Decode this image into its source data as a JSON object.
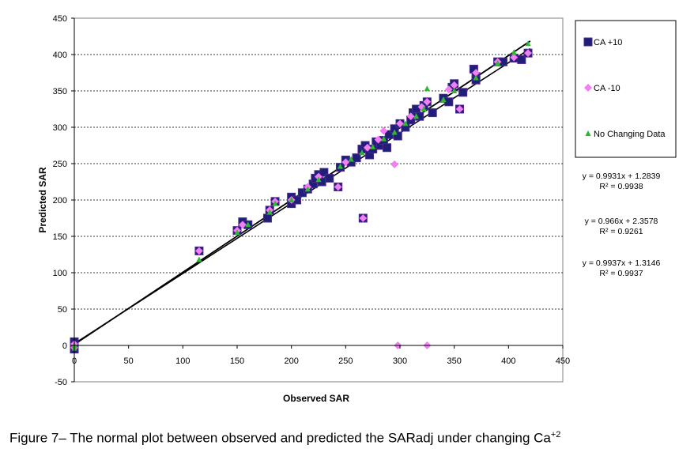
{
  "chart_data": {
    "type": "scatter",
    "title": "",
    "xlabel": "Observed  SAR",
    "ylabel": "Predicted SAR",
    "xlim": [
      0,
      450
    ],
    "ylim": [
      -50,
      450
    ],
    "x_ticks": [
      "0",
      "50",
      "100",
      "150",
      "200",
      "250",
      "300",
      "350",
      "400",
      "450"
    ],
    "y_ticks": [
      "-50",
      "0",
      "50",
      "100",
      "150",
      "200",
      "250",
      "300",
      "350",
      "400",
      "450"
    ],
    "grid": "horizontal dashed",
    "legend_position": "right",
    "series": [
      {
        "name": "CA +10",
        "marker": "square",
        "color": "#1f1f7a",
        "points": [
          [
            0,
            -5
          ],
          [
            0,
            0
          ],
          [
            0,
            5
          ],
          [
            115,
            130
          ],
          [
            150,
            158
          ],
          [
            155,
            170
          ],
          [
            160,
            166
          ],
          [
            178,
            175
          ],
          [
            180,
            186
          ],
          [
            185,
            198
          ],
          [
            200,
            195
          ],
          [
            200,
            204
          ],
          [
            205,
            200
          ],
          [
            210,
            210
          ],
          [
            215,
            215
          ],
          [
            220,
            222
          ],
          [
            222,
            230
          ],
          [
            225,
            235
          ],
          [
            228,
            225
          ],
          [
            230,
            238
          ],
          [
            235,
            230
          ],
          [
            243,
            218
          ],
          [
            245,
            245
          ],
          [
            250,
            255
          ],
          [
            255,
            252
          ],
          [
            260,
            258
          ],
          [
            265,
            270
          ],
          [
            266,
            175
          ],
          [
            268,
            275
          ],
          [
            272,
            262
          ],
          [
            275,
            270
          ],
          [
            278,
            280
          ],
          [
            282,
            275
          ],
          [
            285,
            282
          ],
          [
            288,
            272
          ],
          [
            290,
            290
          ],
          [
            295,
            298
          ],
          [
            298,
            288
          ],
          [
            300,
            305
          ],
          [
            305,
            300
          ],
          [
            310,
            310
          ],
          [
            312,
            320
          ],
          [
            315,
            325
          ],
          [
            318,
            315
          ],
          [
            322,
            330
          ],
          [
            325,
            335
          ],
          [
            330,
            320
          ],
          [
            340,
            340
          ],
          [
            345,
            335
          ],
          [
            348,
            355
          ],
          [
            350,
            360
          ],
          [
            355,
            325
          ],
          [
            358,
            348
          ],
          [
            368,
            380
          ],
          [
            370,
            370
          ],
          [
            370,
            365
          ],
          [
            390,
            390
          ],
          [
            395,
            390
          ],
          [
            405,
            395
          ],
          [
            412,
            393
          ],
          [
            418,
            402
          ]
        ]
      },
      {
        "name": "CA -10",
        "marker": "diamond",
        "color": "#ee82ee",
        "points": [
          [
            0,
            -3
          ],
          [
            0,
            2
          ],
          [
            115,
            130
          ],
          [
            150,
            158
          ],
          [
            155,
            166
          ],
          [
            180,
            186
          ],
          [
            185,
            198
          ],
          [
            200,
            200
          ],
          [
            215,
            218
          ],
          [
            225,
            232
          ],
          [
            243,
            218
          ],
          [
            250,
            252
          ],
          [
            266,
            175
          ],
          [
            270,
            272
          ],
          [
            280,
            283
          ],
          [
            285,
            295
          ],
          [
            295,
            249
          ],
          [
            298,
            0
          ],
          [
            300,
            305
          ],
          [
            310,
            315
          ],
          [
            320,
            328
          ],
          [
            325,
            0
          ],
          [
            325,
            335
          ],
          [
            345,
            352
          ],
          [
            350,
            358
          ],
          [
            355,
            325
          ],
          [
            370,
            375
          ],
          [
            390,
            390
          ],
          [
            405,
            396
          ],
          [
            418,
            402
          ]
        ]
      },
      {
        "name": "No Changing Data",
        "marker": "triangle",
        "color": "#2eb82e",
        "points": [
          [
            0,
            -4
          ],
          [
            0,
            0
          ],
          [
            115,
            118
          ],
          [
            150,
            155
          ],
          [
            160,
            166
          ],
          [
            180,
            183
          ],
          [
            185,
            195
          ],
          [
            200,
            200
          ],
          [
            215,
            215
          ],
          [
            225,
            228
          ],
          [
            245,
            246
          ],
          [
            255,
            256
          ],
          [
            265,
            265
          ],
          [
            275,
            273
          ],
          [
            285,
            284
          ],
          [
            295,
            293
          ],
          [
            305,
            305
          ],
          [
            315,
            315
          ],
          [
            322,
            325
          ],
          [
            325,
            353
          ],
          [
            340,
            338
          ],
          [
            350,
            350
          ],
          [
            370,
            368
          ],
          [
            390,
            388
          ],
          [
            405,
            403
          ],
          [
            418,
            415
          ]
        ]
      }
    ],
    "trendlines": [
      {
        "slope": 0.9931,
        "intercept": 1.2839,
        "x_range": [
          0,
          420
        ],
        "equation": "y = 0.9931x + 1.2839",
        "r2": "R² = 0.9938"
      },
      {
        "slope": 0.966,
        "intercept": 2.3578,
        "x_range": [
          0,
          420
        ],
        "equation": "y = 0.966x + 2.3578",
        "r2": "R² = 0.9261"
      },
      {
        "slope": 0.9937,
        "intercept": 1.3146,
        "x_range": [
          0,
          420
        ],
        "equation": "y = 0.9937x + 1.3146",
        "r2": "R² = 0.9937"
      }
    ]
  },
  "caption": {
    "main": "Figure 7– The normal plot between observed and predicted the SARadj under  changing Ca",
    "sup": "+2"
  }
}
